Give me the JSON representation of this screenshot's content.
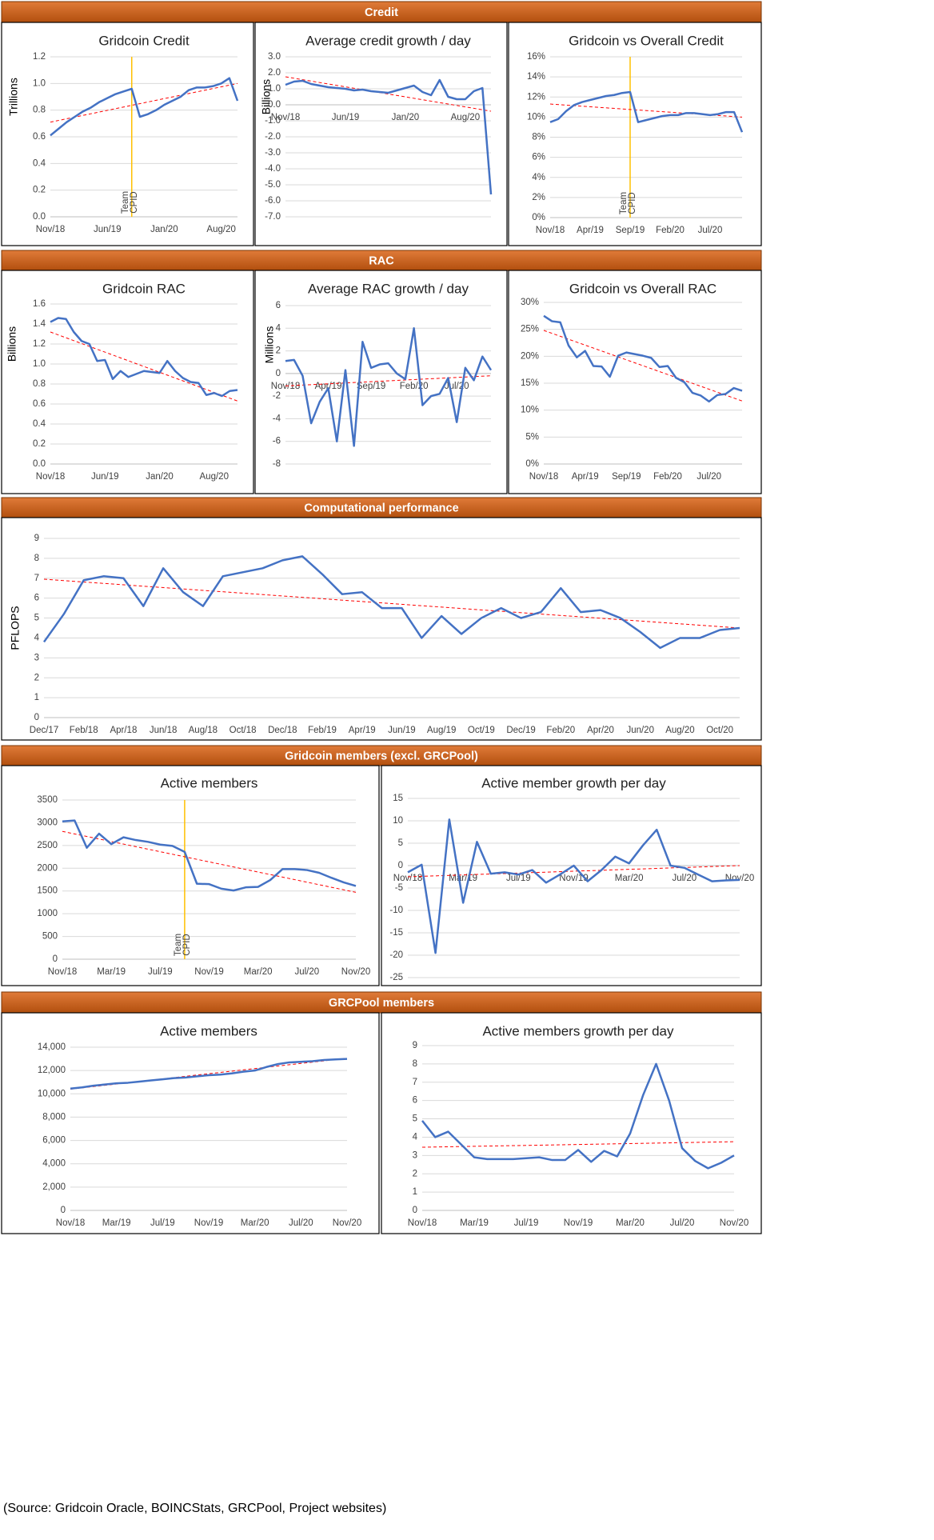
{
  "sections": [
    {
      "title": "Credit"
    },
    {
      "title": "RAC"
    },
    {
      "title": "Computational performance"
    },
    {
      "title": "Gridcoin members (excl. GRCPool)"
    },
    {
      "title": "GRCPool members"
    }
  ],
  "source": "(Source: Gridcoin Oracle, BOINCStats, GRCPool, Project websites)",
  "chart_data": [
    {
      "type": "line",
      "title": "Gridcoin Credit",
      "y_label": "Trillions",
      "categories": [
        "Nov/18",
        null,
        null,
        null,
        null,
        null,
        null,
        "Jun/19",
        null,
        null,
        null,
        null,
        null,
        null,
        "Jan/20",
        null,
        null,
        null,
        null,
        null,
        null,
        "Aug/20",
        null,
        null
      ],
      "series": [
        {
          "color": "#4472c4",
          "values": [
            0.61,
            0.66,
            0.71,
            0.75,
            0.79,
            0.82,
            0.86,
            0.89,
            0.92,
            0.94,
            0.96,
            0.75,
            0.77,
            0.8,
            0.84,
            0.87,
            0.9,
            0.95,
            0.97,
            0.97,
            0.98,
            1.0,
            1.04,
            0.87
          ]
        }
      ],
      "trendline": {
        "color": "#ff0000",
        "values": [
          0.71,
          1.0
        ]
      },
      "annotation": {
        "text": [
          "Team",
          "CPID"
        ],
        "category_index": 10,
        "color": "#ffc000"
      },
      "ylim": [
        0,
        1.2
      ],
      "yticks": [
        {
          "value": 0,
          "label": "0.0"
        },
        0.2,
        0.4,
        0.6,
        0.8,
        {
          "value": 1,
          "label": "1.0"
        },
        1.2
      ],
      "grid": true
    },
    {
      "type": "line",
      "title": "Average credit growth / day",
      "y_label": "Billions",
      "categories": [
        "Nov/18",
        null,
        null,
        null,
        null,
        null,
        null,
        "Jun/19",
        null,
        null,
        null,
        null,
        null,
        null,
        "Jan/20",
        null,
        null,
        null,
        null,
        null,
        null,
        "Aug/20",
        null,
        null,
        null
      ],
      "series": [
        {
          "color": "#4472c4",
          "values": [
            1.25,
            1.45,
            1.5,
            1.3,
            1.2,
            1.1,
            1.05,
            1.0,
            0.9,
            0.95,
            0.85,
            0.8,
            0.75,
            0.9,
            1.05,
            1.2,
            0.8,
            0.6,
            1.55,
            0.5,
            0.35,
            0.35,
            0.85,
            1.05,
            -5.6
          ]
        }
      ],
      "trendline": {
        "color": "#ff0000",
        "values": [
          1.75,
          -0.4
        ]
      },
      "ylim": [
        -7,
        3
      ],
      "yticks": [
        {
          "value": 3,
          "label": "3.0"
        },
        {
          "value": 2,
          "label": "2.0"
        },
        {
          "value": 1,
          "label": "1.0"
        },
        {
          "value": 0,
          "label": "0.0"
        },
        {
          "value": -1,
          "label": "-1.0"
        },
        {
          "value": -2,
          "label": "-2.0"
        },
        {
          "value": -3,
          "label": "-3.0"
        },
        {
          "value": -4,
          "label": "-4.0"
        },
        {
          "value": -5,
          "label": "-5.0"
        },
        {
          "value": -6,
          "label": "-6.0"
        },
        {
          "value": -7,
          "label": "-7.0"
        }
      ],
      "grid": true
    },
    {
      "type": "line",
      "title": "Gridcoin vs Overall Credit",
      "categories": [
        "Nov/18",
        null,
        null,
        null,
        null,
        "Apr/19",
        null,
        null,
        null,
        null,
        "Sep/19",
        null,
        null,
        null,
        null,
        "Feb/20",
        null,
        null,
        null,
        null,
        "Jul/20",
        null,
        null,
        null,
        null
      ],
      "series": [
        {
          "color": "#4472c4",
          "values": [
            9.5,
            9.8,
            10.6,
            11.2,
            11.5,
            11.7,
            11.9,
            12.1,
            12.2,
            12.4,
            12.5,
            9.5,
            9.7,
            9.9,
            10.1,
            10.2,
            10.2,
            10.4,
            10.4,
            10.3,
            10.2,
            10.3,
            10.5,
            10.5,
            8.5
          ]
        }
      ],
      "trendline": {
        "color": "#ff0000",
        "values": [
          11.3,
          10.0
        ]
      },
      "annotation": {
        "text": [
          "Team",
          "CPID"
        ],
        "category_index": 10,
        "color": "#ffc000"
      },
      "ylim": [
        0,
        16
      ],
      "yticks": [
        {
          "value": 0,
          "label": "0%"
        },
        {
          "value": 2,
          "label": "2%"
        },
        {
          "value": 4,
          "label": "4%"
        },
        {
          "value": 6,
          "label": "6%"
        },
        {
          "value": 8,
          "label": "8%"
        },
        {
          "value": 10,
          "label": "10%"
        },
        {
          "value": 12,
          "label": "12%"
        },
        {
          "value": 14,
          "label": "14%"
        },
        {
          "value": 16,
          "label": "16%"
        }
      ],
      "grid": true
    },
    {
      "type": "line",
      "title": "Gridcoin RAC",
      "y_label": "Billions",
      "categories": [
        "Nov/18",
        null,
        null,
        null,
        null,
        null,
        null,
        "Jun/19",
        null,
        null,
        null,
        null,
        null,
        null,
        "Jan/20",
        null,
        null,
        null,
        null,
        null,
        null,
        "Aug/20",
        null,
        null,
        null
      ],
      "series": [
        {
          "color": "#4472c4",
          "values": [
            1.42,
            1.46,
            1.45,
            1.32,
            1.23,
            1.2,
            1.03,
            1.04,
            0.85,
            0.93,
            0.87,
            0.9,
            0.93,
            0.92,
            0.91,
            1.03,
            0.93,
            0.86,
            0.82,
            0.81,
            0.69,
            0.71,
            0.68,
            0.73,
            0.74
          ]
        }
      ],
      "trendline": {
        "color": "#ff0000",
        "values": [
          1.32,
          0.63
        ]
      },
      "ylim": [
        0,
        1.6
      ],
      "yticks": [
        {
          "value": 0,
          "label": "0.0"
        },
        0.2,
        0.4,
        0.6,
        0.8,
        {
          "value": 1,
          "label": "1.0"
        },
        1.2,
        1.4,
        1.6
      ],
      "grid": true
    },
    {
      "type": "line",
      "title": "Average RAC growth / day",
      "y_label": "Millions",
      "categories": [
        "Nov/18",
        null,
        null,
        null,
        null,
        "Apr/19",
        null,
        null,
        null,
        null,
        "Sep/19",
        null,
        null,
        null,
        null,
        "Feb/20",
        null,
        null,
        null,
        null,
        "Jul/20",
        null,
        null,
        null,
        null
      ],
      "series": [
        {
          "color": "#4472c4",
          "values": [
            1.1,
            1.2,
            -0.2,
            -4.4,
            -2.5,
            -1.3,
            -6,
            0.3,
            -6.4,
            2.8,
            0.5,
            0.8,
            0.9,
            0,
            -0.5,
            4,
            -2.8,
            -2,
            -1.8,
            -0.4,
            -4.3,
            0.5,
            -0.6,
            1.5,
            0.3
          ]
        }
      ],
      "trendline": {
        "color": "#ff0000",
        "values": [
          -1.1,
          -0.2
        ]
      },
      "ylim": [
        -8,
        6
      ],
      "yticks": [
        6,
        4,
        2,
        0,
        -2,
        -4,
        -6,
        -8
      ],
      "grid": true
    },
    {
      "type": "line",
      "title": "Gridcoin vs Overall RAC",
      "categories": [
        "Nov/18",
        null,
        null,
        null,
        null,
        "Apr/19",
        null,
        null,
        null,
        null,
        "Sep/19",
        null,
        null,
        null,
        null,
        "Feb/20",
        null,
        null,
        null,
        null,
        "Jul/20",
        null,
        null,
        null,
        null
      ],
      "series": [
        {
          "color": "#4472c4",
          "values": [
            27.5,
            26.5,
            26.3,
            22.0,
            19.8,
            21.0,
            18.2,
            18.1,
            16.2,
            20.1,
            20.7,
            20.4,
            20.1,
            19.7,
            18.0,
            18.2,
            16.0,
            15.2,
            13.2,
            12.7,
            11.6,
            12.8,
            13.0,
            14.1,
            13.6
          ]
        }
      ],
      "trendline": {
        "color": "#ff0000",
        "values": [
          24.8,
          11.7
        ]
      },
      "ylim": [
        0,
        30
      ],
      "yticks": [
        {
          "value": 0,
          "label": "0%"
        },
        {
          "value": 5,
          "label": "5%"
        },
        {
          "value": 10,
          "label": "10%"
        },
        {
          "value": 15,
          "label": "15%"
        },
        {
          "value": 20,
          "label": "20%"
        },
        {
          "value": 25,
          "label": "25%"
        },
        {
          "value": 30,
          "label": "30%"
        }
      ],
      "grid": true
    },
    {
      "type": "line",
      "y_label": "PFLOPS",
      "categories": [
        "Dec/17",
        null,
        "Feb/18",
        null,
        "Apr/18",
        null,
        "Jun/18",
        null,
        "Aug/18",
        null,
        "Oct/18",
        null,
        "Dec/18",
        null,
        "Feb/19",
        null,
        "Apr/19",
        null,
        "Jun/19",
        null,
        "Aug/19",
        null,
        "Oct/19",
        null,
        "Dec/19",
        null,
        "Feb/20",
        null,
        "Apr/20",
        null,
        "Jun/20",
        null,
        "Aug/20",
        null,
        "Oct/20",
        null
      ],
      "series": [
        {
          "color": "#4472c4",
          "values": [
            3.8,
            5.2,
            6.9,
            7.1,
            7.0,
            5.6,
            7.5,
            6.3,
            5.6,
            7.1,
            7.3,
            7.5,
            7.9,
            8.1,
            7.2,
            6.2,
            6.3,
            5.5,
            5.5,
            4.0,
            5.1,
            4.2,
            5.0,
            5.5,
            5.0,
            5.3,
            6.5,
            5.3,
            5.4,
            5.0,
            4.3,
            3.5,
            4.0,
            4.0,
            4.4,
            4.5
          ]
        }
      ],
      "trendline": {
        "color": "#ff0000",
        "values": [
          6.95,
          4.5
        ]
      },
      "ylim": [
        0,
        9
      ],
      "yticks": [
        0,
        1,
        2,
        3,
        4,
        5,
        6,
        7,
        8,
        9
      ],
      "grid": true
    },
    {
      "type": "line",
      "title": "Active members",
      "categories": [
        "Nov/18",
        null,
        null,
        null,
        "Mar/19",
        null,
        null,
        null,
        "Jul/19",
        null,
        null,
        null,
        "Nov/19",
        null,
        null,
        null,
        "Mar/20",
        null,
        null,
        null,
        "Jul/20",
        null,
        null,
        null,
        "Nov/20"
      ],
      "series": [
        {
          "color": "#4472c4",
          "values": [
            3030,
            3050,
            2450,
            2760,
            2530,
            2680,
            2620,
            2580,
            2520,
            2490,
            2360,
            1660,
            1650,
            1550,
            1510,
            1580,
            1590,
            1740,
            1980,
            1980,
            1960,
            1900,
            1790,
            1690,
            1610
          ]
        }
      ],
      "trendline": {
        "color": "#ff0000",
        "values": [
          2810,
          1470
        ]
      },
      "annotation": {
        "text": [
          "Team",
          "CPID"
        ],
        "category_index": 10,
        "color": "#ffc000"
      },
      "ylim": [
        0,
        3500
      ],
      "yticks": [
        0,
        500,
        1000,
        1500,
        2000,
        2500,
        3000,
        3500
      ],
      "grid": true
    },
    {
      "type": "line",
      "title": "Active member growth per day",
      "categories": [
        "Nov/18",
        null,
        null,
        null,
        "Mar/19",
        null,
        null,
        null,
        "Jul/19",
        null,
        null,
        null,
        "Nov/19",
        null,
        null,
        null,
        "Mar/20",
        null,
        null,
        null,
        "Jul/20",
        null,
        null,
        null,
        "Nov/20"
      ],
      "series": [
        {
          "color": "#4472c4",
          "values": [
            -1.5,
            0.2,
            -19.5,
            10.3,
            -8.3,
            5.3,
            -1.8,
            -1.5,
            -2.0,
            -1.0,
            -3.8,
            -2.0,
            0,
            -3.5,
            -1.0,
            2.0,
            0.5,
            4.5,
            8.0,
            0,
            -0.5,
            -2.0,
            -3.5,
            -3.3,
            -3.2
          ]
        }
      ],
      "trendline": {
        "color": "#ff0000",
        "values": [
          -2.5,
          0
        ]
      },
      "ylim": [
        -25,
        15
      ],
      "yticks": [
        15,
        10,
        5,
        0,
        -5,
        -10,
        -15,
        -20,
        -25
      ],
      "grid": true
    },
    {
      "type": "line",
      "title": "Active members",
      "categories": [
        "Nov/18",
        null,
        null,
        null,
        "Mar/19",
        null,
        null,
        null,
        "Jul/19",
        null,
        null,
        null,
        "Nov/19",
        null,
        null,
        null,
        "Mar/20",
        null,
        null,
        null,
        "Jul/20",
        null,
        null,
        null,
        "Nov/20"
      ],
      "series": [
        {
          "color": "#4472c4",
          "values": [
            10450,
            10550,
            10700,
            10800,
            10900,
            10950,
            11050,
            11150,
            11250,
            11350,
            11400,
            11500,
            11600,
            11650,
            11750,
            11900,
            12000,
            12300,
            12550,
            12700,
            12750,
            12800,
            12900,
            12950,
            13000
          ]
        }
      ],
      "trendline": {
        "color": "#ff0000",
        "values": [
          10400,
          13050
        ]
      },
      "ylim": [
        0,
        14000
      ],
      "yticks": [
        0,
        {
          "value": 2000,
          "label": "2,000"
        },
        {
          "value": 4000,
          "label": "4,000"
        },
        {
          "value": 6000,
          "label": "6,000"
        },
        {
          "value": 8000,
          "label": "8,000"
        },
        {
          "value": 10000,
          "label": "10,000"
        },
        {
          "value": 12000,
          "label": "12,000"
        },
        {
          "value": 14000,
          "label": "14,000"
        }
      ],
      "grid": true
    },
    {
      "type": "line",
      "title": "Active members growth per day",
      "categories": [
        "Nov/18",
        null,
        null,
        null,
        "Mar/19",
        null,
        null,
        null,
        "Jul/19",
        null,
        null,
        null,
        "Nov/19",
        null,
        null,
        null,
        "Mar/20",
        null,
        null,
        null,
        "Jul/20",
        null,
        null,
        null,
        "Nov/20"
      ],
      "series": [
        {
          "color": "#4472c4",
          "values": [
            4.9,
            4.0,
            4.3,
            3.6,
            2.9,
            2.8,
            2.8,
            2.8,
            2.85,
            2.9,
            2.75,
            2.75,
            3.3,
            2.65,
            3.25,
            2.95,
            4.2,
            6.3,
            8.0,
            6.0,
            3.4,
            2.7,
            2.3,
            2.6,
            3.0
          ]
        }
      ],
      "trendline": {
        "color": "#ff0000",
        "values": [
          3.45,
          3.75
        ]
      },
      "ylim": [
        0,
        9
      ],
      "yticks": [
        0,
        1,
        2,
        3,
        4,
        5,
        6,
        7,
        8,
        9
      ],
      "grid": true
    }
  ]
}
